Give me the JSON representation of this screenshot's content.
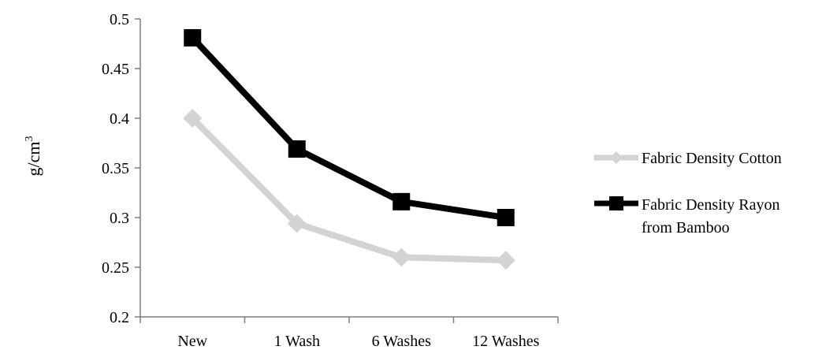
{
  "chart_data": {
    "type": "line",
    "categories": [
      "New",
      "1 Wash",
      "6 Washes",
      "12 Washes"
    ],
    "series": [
      {
        "name": "Fabric Density Cotton",
        "values": [
          0.4,
          0.294,
          0.26,
          0.257
        ],
        "color": "#d3d3d3",
        "marker": "diamond"
      },
      {
        "name": "Fabric Density Rayon from Bamboo",
        "values": [
          0.481,
          0.369,
          0.316,
          0.3
        ],
        "color": "#000000",
        "marker": "square"
      }
    ],
    "ylabel": "g/cm",
    "ylabel_superscript": "3",
    "ylim": [
      0.2,
      0.5
    ],
    "yticks": [
      "0.2",
      "0.25",
      "0.3",
      "0.35",
      "0.4",
      "0.45",
      "0.5"
    ],
    "grid": false,
    "legend_position": "right"
  },
  "legend": {
    "cotton": "Fabric Density Cotton",
    "rayon_line1": "Fabric Density Rayon",
    "rayon_line2": "from Bamboo"
  }
}
